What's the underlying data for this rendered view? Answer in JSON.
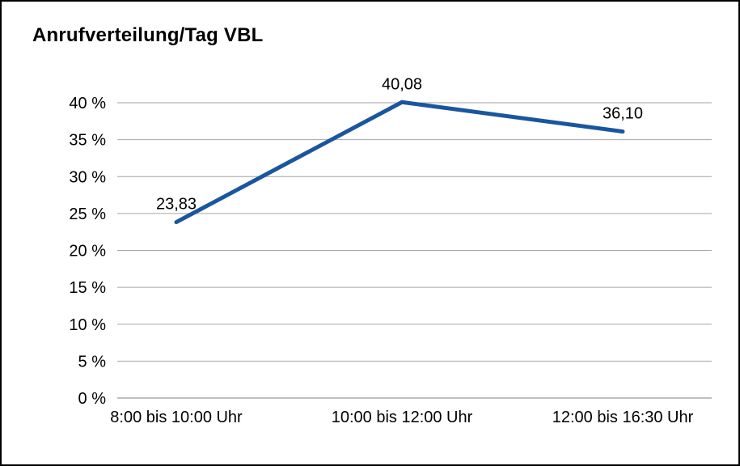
{
  "title": "Anrufverteilung/Tag VBL",
  "colors": {
    "background": "#ffffff",
    "border": "#000000",
    "line": "#1a569e",
    "gridline": "#a6a6a6",
    "axis": "#7f7f7f",
    "text": "#000000"
  },
  "chart_data": {
    "type": "line",
    "title": "Anrufverteilung/Tag VBL",
    "categories": [
      "8:00 bis 10:00 Uhr",
      "10:00 bis 12:00 Uhr",
      "12:00 bis 16:30 Uhr"
    ],
    "values": [
      23.83,
      40.08,
      36.1
    ],
    "data_labels": [
      "23,83",
      "40,08",
      "36,10"
    ],
    "xlabel": "",
    "ylabel": "",
    "ylim": [
      0,
      40
    ],
    "ytick_step": 5,
    "ytick_labels": [
      "0 %",
      "5 %",
      "10 %",
      "15 %",
      "20 %",
      "25 %",
      "30 %",
      "35 %",
      "40 %"
    ],
    "grid": true,
    "legend": "none"
  }
}
